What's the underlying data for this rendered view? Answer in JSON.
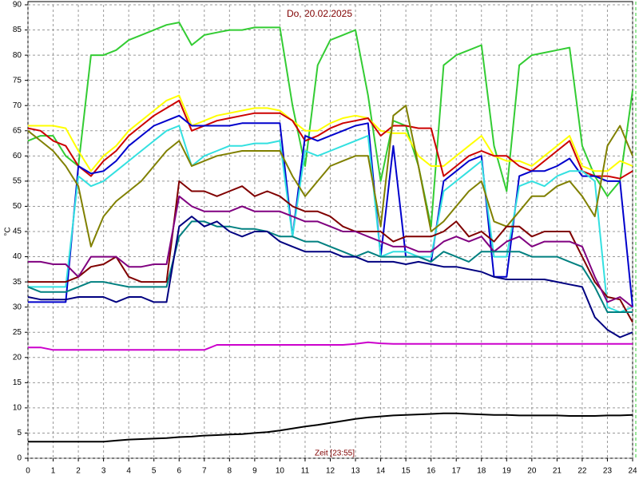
{
  "chart_data": {
    "type": "line",
    "title": "Do, 20.02.2025",
    "xlabel": "Zeit [23:55]",
    "ylabel": "°C",
    "x": [
      0,
      0.5,
      1,
      1.5,
      2,
      2.5,
      3,
      3.5,
      4,
      4.5,
      5,
      5.5,
      6,
      6.5,
      7,
      7.5,
      8,
      8.5,
      9,
      9.5,
      10,
      10.5,
      11,
      11.5,
      12,
      12.5,
      13,
      13.5,
      14,
      14.5,
      15,
      15.5,
      16,
      16.5,
      17,
      17.5,
      18,
      18.5,
      19,
      19.5,
      20,
      20.5,
      21,
      21.5,
      22,
      22.5,
      23,
      23.5,
      24
    ],
    "xlim": [
      0,
      24
    ],
    "xticks": [
      0,
      1,
      2,
      3,
      4,
      5,
      6,
      7,
      8,
      9,
      10,
      11,
      12,
      13,
      14,
      15,
      16,
      17,
      18,
      19,
      20,
      21,
      22,
      23,
      24
    ],
    "ylim": [
      0,
      90
    ],
    "yticks": [
      0,
      5,
      10,
      15,
      20,
      25,
      30,
      35,
      40,
      45,
      50,
      55,
      60,
      65,
      70,
      75,
      80,
      85,
      90
    ],
    "grid": true,
    "series": [
      {
        "color": "#33cc33",
        "values": [
          63,
          64,
          64,
          60,
          58,
          80,
          80,
          81,
          83,
          84,
          85,
          86,
          86.5,
          82,
          84,
          84.5,
          85,
          85,
          85.5,
          85.5,
          85.5,
          70,
          58,
          78,
          83,
          84,
          85,
          72,
          55,
          67,
          66,
          58,
          46,
          78,
          80,
          81,
          82,
          62,
          53,
          78,
          80,
          80.5,
          81,
          81.5,
          62,
          56,
          52,
          55,
          73
        ]
      },
      {
        "color": "#ffff00",
        "values": [
          66,
          66,
          66,
          65.5,
          61,
          57,
          60,
          62,
          65,
          67,
          69,
          71,
          72,
          66,
          67,
          68,
          68.5,
          69,
          69.5,
          69.5,
          69,
          67,
          65,
          65,
          66.5,
          67.5,
          68,
          67.5,
          65,
          64.5,
          64.5,
          60,
          58,
          58,
          60,
          62,
          64,
          60,
          59,
          59,
          58,
          60,
          62,
          64,
          58,
          57,
          57,
          59,
          58
        ]
      },
      {
        "color": "#cc0000",
        "values": [
          65.5,
          65,
          63,
          62,
          58,
          56,
          59,
          61,
          64,
          66,
          68,
          69.5,
          71,
          65,
          66,
          67,
          67.5,
          68,
          68.5,
          68.5,
          68.5,
          67,
          63,
          64,
          65.5,
          66.5,
          67,
          67.5,
          64,
          66,
          66,
          65.5,
          65.5,
          56,
          58,
          60,
          61,
          60,
          60,
          58,
          57,
          59,
          61,
          63,
          57,
          56,
          56,
          55.5,
          57
        ]
      },
      {
        "color": "#0000cc",
        "values": [
          31,
          31,
          31,
          31,
          58,
          56.5,
          57,
          59,
          62,
          64,
          66,
          67,
          68,
          66,
          66,
          66,
          66,
          66.5,
          66.5,
          66.5,
          66.5,
          44,
          64,
          63,
          64,
          65,
          66,
          66.5,
          40,
          62,
          40,
          40,
          39,
          55,
          57,
          59,
          60,
          36,
          36,
          56,
          57,
          57,
          58,
          59.5,
          56,
          56,
          55,
          55,
          30
        ]
      },
      {
        "color": "#33e0e0",
        "values": [
          34,
          34,
          34,
          34,
          56,
          54,
          55,
          57,
          59,
          61,
          63,
          65,
          66,
          58,
          60,
          61,
          62,
          62,
          62.5,
          62.5,
          63,
          44,
          61,
          60,
          61,
          62,
          63,
          64,
          40,
          41,
          41,
          40,
          40,
          53,
          55,
          57,
          59,
          40,
          40,
          54,
          55,
          54,
          56,
          57,
          57,
          55,
          30,
          29,
          30
        ]
      },
      {
        "color": "#808000",
        "values": [
          65,
          63,
          61,
          58,
          54,
          42,
          48,
          51,
          53,
          55,
          58,
          61,
          63,
          58,
          59,
          60,
          60.5,
          61,
          61,
          61,
          61,
          56,
          52,
          55,
          58,
          59,
          60,
          60,
          46,
          68,
          70,
          58,
          45,
          47,
          50,
          53,
          55,
          47,
          46,
          49,
          52,
          52,
          54,
          55,
          52,
          48,
          62,
          66,
          60
        ]
      },
      {
        "color": "#800000",
        "values": [
          35,
          35,
          35,
          35,
          36,
          38,
          38.5,
          40,
          36,
          35,
          35,
          35,
          55,
          53,
          53,
          52,
          53,
          54,
          52,
          53,
          52,
          50,
          49,
          49,
          48,
          46,
          45,
          45,
          45,
          43,
          44,
          44,
          44,
          45,
          47,
          44,
          45,
          43,
          46,
          46,
          44,
          45,
          45,
          45,
          40,
          35,
          32,
          31.5,
          27
        ]
      },
      {
        "color": "#800080",
        "values": [
          39,
          39,
          38.5,
          38.5,
          36,
          40,
          40,
          40,
          38,
          38,
          38.5,
          38.5,
          52,
          50,
          49,
          49,
          49,
          50,
          49,
          49,
          49,
          48,
          47,
          47,
          46,
          45,
          45,
          44,
          43,
          42,
          42,
          41,
          41,
          43,
          44,
          43,
          44,
          41,
          43,
          44,
          42,
          43,
          43,
          43,
          42,
          36,
          31,
          32,
          30
        ]
      },
      {
        "color": "#008080",
        "values": [
          34,
          33,
          33,
          33,
          34,
          35,
          35,
          34.5,
          34,
          34,
          34,
          34,
          44,
          47,
          47,
          46,
          46,
          45.5,
          45.5,
          45,
          44,
          44,
          43,
          43,
          42,
          41,
          40,
          41,
          40,
          40,
          40,
          40,
          39,
          41,
          40,
          39,
          41,
          41,
          41,
          41,
          40,
          40,
          40,
          39,
          38,
          34,
          29,
          29,
          29
        ]
      },
      {
        "color": "#000080",
        "values": [
          32,
          31.5,
          31.5,
          31.5,
          32,
          32,
          32,
          31,
          32,
          32,
          31,
          31,
          46,
          48,
          46,
          47,
          45,
          44,
          45,
          45,
          43,
          42,
          41,
          41,
          41,
          40,
          40,
          39,
          39,
          39,
          38.5,
          39,
          38.5,
          38,
          38,
          37.5,
          37,
          36,
          35.5,
          35.5,
          35.5,
          35.5,
          35,
          34.5,
          34,
          28,
          25.5,
          24,
          25
        ]
      },
      {
        "color": "#cc00cc",
        "values": [
          22,
          22,
          21.5,
          21.5,
          21.5,
          21.5,
          21.5,
          21.5,
          21.5,
          21.5,
          21.5,
          21.5,
          21.5,
          21.5,
          21.5,
          22.5,
          22.5,
          22.5,
          22.5,
          22.5,
          22.5,
          22.5,
          22.5,
          22.5,
          22.5,
          22.5,
          22.7,
          23,
          22.8,
          22.7,
          22.7,
          22.7,
          22.7,
          22.7,
          22.7,
          22.7,
          22.7,
          22.7,
          22.7,
          22.7,
          22.7,
          22.7,
          22.7,
          22.7,
          22.7,
          22.7,
          22.7,
          22.7,
          22.7
        ]
      },
      {
        "color": "#000000",
        "values": [
          3.3,
          3.3,
          3.3,
          3.3,
          3.3,
          3.3,
          3.3,
          3.5,
          3.7,
          3.8,
          3.9,
          4,
          4.2,
          4.3,
          4.5,
          4.6,
          4.7,
          4.8,
          5,
          5.2,
          5.5,
          5.9,
          6.3,
          6.6,
          7,
          7.4,
          7.8,
          8.1,
          8.3,
          8.5,
          8.6,
          8.7,
          8.8,
          8.9,
          8.9,
          8.8,
          8.7,
          8.6,
          8.6,
          8.5,
          8.5,
          8.5,
          8.5,
          8.4,
          8.4,
          8.4,
          8.5,
          8.5,
          8.6
        ]
      }
    ]
  }
}
